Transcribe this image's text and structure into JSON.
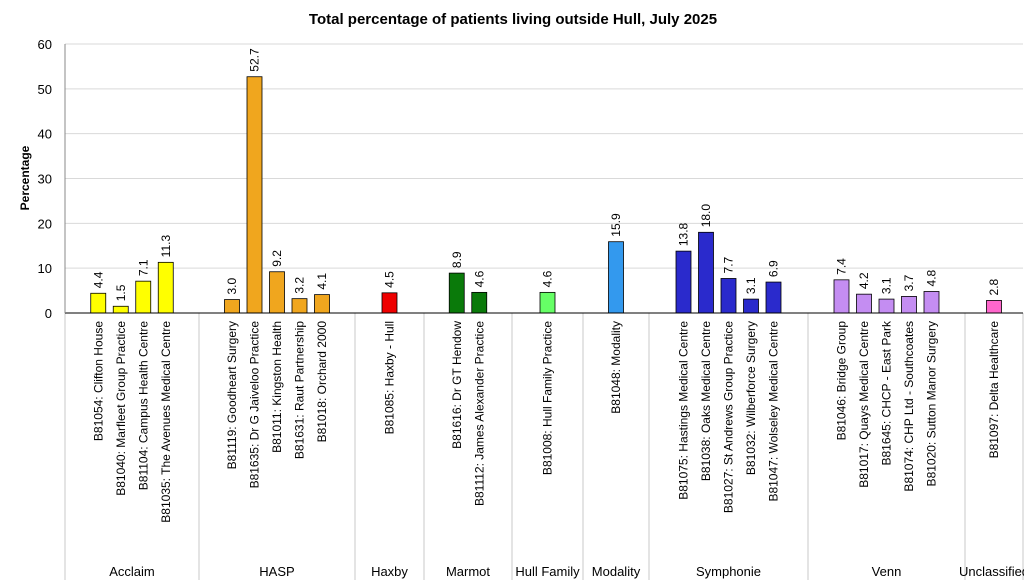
{
  "chart_data": {
    "type": "bar",
    "title": "Total percentage of patients living outside Hull, July 2025",
    "xlabel": "",
    "ylabel": "Percentage",
    "ylim": [
      0,
      60
    ],
    "yticks": [
      0,
      10,
      20,
      30,
      40,
      50,
      60
    ],
    "grid": true,
    "groups": [
      {
        "name": "Acclaim",
        "color": "#ffff00",
        "bars": [
          {
            "label": "B81054: Clifton House",
            "value": 4.4
          },
          {
            "label": "B81040: Marfleet Group Practice",
            "value": 1.5
          },
          {
            "label": "B81104: Campus Health Centre",
            "value": 7.1
          },
          {
            "label": "B81035: The Avenues Medical Centre",
            "value": 11.3
          }
        ]
      },
      {
        "name": "HASP",
        "color": "#f0a61e",
        "bars": [
          {
            "label": "B81119: Goodheart Surgery",
            "value": 3.0
          },
          {
            "label": "B81635: Dr G Jaiveloo Practice",
            "value": 52.7
          },
          {
            "label": "B81011: Kingston Health",
            "value": 9.2
          },
          {
            "label": "B81631: Raut Partnership",
            "value": 3.2
          },
          {
            "label": "B81018: Orchard 2000",
            "value": 4.1
          }
        ]
      },
      {
        "name": "Haxby",
        "color": "#ee0000",
        "bars": [
          {
            "label": "B81085: Haxby - Hull",
            "value": 4.5
          }
        ]
      },
      {
        "name": "Marmot",
        "color": "#0a7a0a",
        "bars": [
          {
            "label": "B81616: Dr GT Hendow",
            "value": 8.9
          },
          {
            "label": "B81112: James Alexander Practice",
            "value": 4.6
          }
        ]
      },
      {
        "name": "Hull Family",
        "color": "#66ff66",
        "bars": [
          {
            "label": "B81008: Hull Family Practice",
            "value": 4.6
          }
        ]
      },
      {
        "name": "Modality",
        "color": "#3399ee",
        "bars": [
          {
            "label": "B81048: Modality",
            "value": 15.9
          }
        ]
      },
      {
        "name": "Symphonie",
        "color": "#2a2acc",
        "bars": [
          {
            "label": "B81075: Hastings Medical Centre",
            "value": 13.8
          },
          {
            "label": "B81038: Oaks Medical Centre",
            "value": 18.0
          },
          {
            "label": "B81027: St Andrews Group Practice",
            "value": 7.7
          },
          {
            "label": "B81032: Wilberforce Surgery",
            "value": 3.1
          },
          {
            "label": "B81047: Wolseley Medical Centre",
            "value": 6.9
          }
        ]
      },
      {
        "name": "Venn",
        "color": "#c48df2",
        "bars": [
          {
            "label": "B81046: Bridge Group",
            "value": 7.4
          },
          {
            "label": "B81017: Quays Medical Centre",
            "value": 4.2
          },
          {
            "label": "B81645: CHCP - East Park",
            "value": 3.1
          },
          {
            "label": "B81074: CHP Ltd - Southcoates",
            "value": 3.7
          },
          {
            "label": "B81020: Sutton Manor Surgery",
            "value": 4.8
          }
        ]
      },
      {
        "name": "Unclassified",
        "color": "#ff66cc",
        "bars": [
          {
            "label": "B81097: Delta Healthcare",
            "value": 2.8
          }
        ]
      }
    ]
  }
}
